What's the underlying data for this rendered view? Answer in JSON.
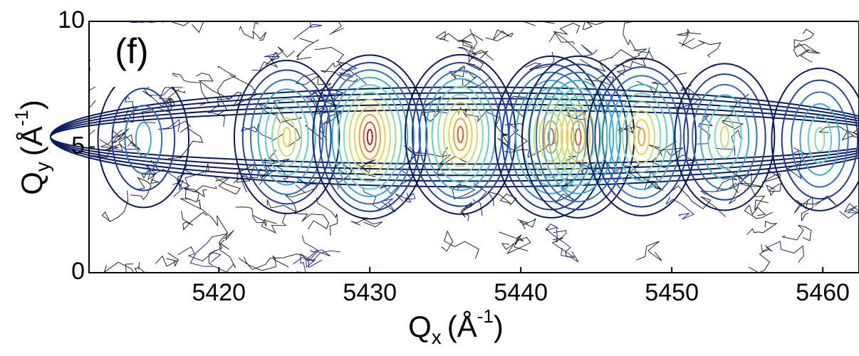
{
  "chart_data": {
    "type": "contour",
    "annotation": "(f)",
    "xlabel": {
      "main": "Q",
      "sub": "x",
      "unit": "(Å",
      "sup": "-1",
      "close": ")"
    },
    "ylabel": {
      "main": "Q",
      "sub": "y",
      "unit": "(Å",
      "sup": "-1",
      "close": ")"
    },
    "xlim": [
      5411.4,
      5462.4
    ],
    "ylim": [
      0,
      10
    ],
    "xticks": [
      5420,
      5430,
      5440,
      5450,
      5460
    ],
    "yticks": [
      0,
      5,
      10
    ],
    "peaks": {
      "x": [
        5415,
        5424.5,
        5430,
        5436,
        5442,
        5443.8,
        5448,
        5453.5,
        5459.8
      ],
      "y": [
        5.3,
        5.4,
        5.4,
        5.5,
        5.4,
        5.4,
        5.4,
        5.4,
        5.3
      ],
      "intensity": [
        0.35,
        0.75,
        1.0,
        0.9,
        0.95,
        0.95,
        0.85,
        0.6,
        0.5
      ]
    },
    "colors": [
      "#0a1a5c",
      "#1f3c9c",
      "#2f6fc0",
      "#3aa8d8",
      "#58d0c8",
      "#7fe0a0",
      "#c0e070",
      "#f0d040",
      "#f0a030",
      "#d86020",
      "#a02010",
      "#ffffff"
    ]
  }
}
